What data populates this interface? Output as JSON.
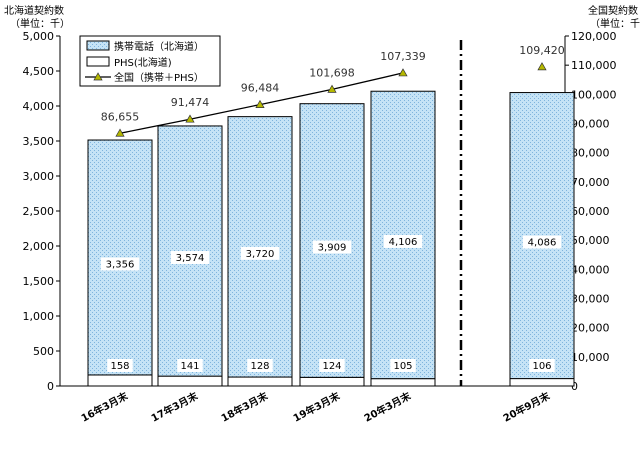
{
  "chart_data": {
    "type": "bar",
    "left_axis_title": [
      "北海道契約数",
      "（単位：千）"
    ],
    "right_axis_title": [
      "全国契約数",
      "（単位：千）"
    ],
    "categories": [
      "16年3月末",
      "17年3月末",
      "18年3月末",
      "19年3月末",
      "20年3月末",
      "20年9月末"
    ],
    "series": [
      {
        "name": "携帯電話（北海道）",
        "axis": "left",
        "values": [
          3356,
          3574,
          3720,
          3909,
          4106,
          4086
        ],
        "color": "#c5e3f6"
      },
      {
        "name": "PHS(北海道)",
        "axis": "left",
        "values": [
          158,
          141,
          128,
          124,
          105,
          106
        ],
        "color": "#ffffff"
      },
      {
        "name": "全国（携帯＋PHS）",
        "axis": "right",
        "type": "line",
        "values": [
          86655,
          91474,
          96484,
          101698,
          107339,
          109420
        ],
        "color": "#000000",
        "marker_color": "#b5b800"
      }
    ],
    "total_labels": [
      "86,655",
      "91,474",
      "96,484",
      "101,698",
      "107,339",
      "109,420"
    ],
    "in_bar_labels": [
      "3,356",
      "3,574",
      "3,720",
      "3,909",
      "4,106",
      "4,086"
    ],
    "phs_labels": [
      "158",
      "141",
      "128",
      "124",
      "105",
      "106"
    ],
    "left_ylim": [
      0,
      5000
    ],
    "left_ticks": [
      "0",
      "500",
      "1,000",
      "1,500",
      "2,000",
      "2,500",
      "3,000",
      "3,500",
      "4,000",
      "4,500",
      "5,000"
    ],
    "right_ylim": [
      0,
      120000
    ],
    "right_ticks": [
      "0",
      "10,000",
      "20,000",
      "30,000",
      "40,000",
      "50,000",
      "60,000",
      "70,000",
      "80,000",
      "90,000",
      "100,000",
      "110,000",
      "120,000"
    ],
    "legend_placement": "top-left",
    "grid": false,
    "line_connected_points": 5,
    "separator_before_category": 5
  }
}
